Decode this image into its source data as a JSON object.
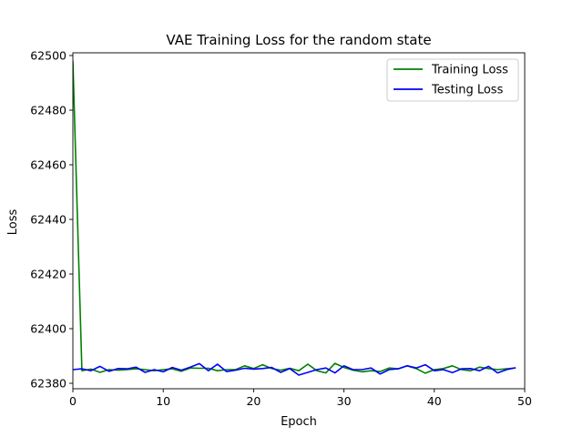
{
  "chart_data": {
    "type": "line",
    "title": "VAE Training Loss for the random state",
    "xlabel": "Epoch",
    "ylabel": "Loss",
    "xlim": [
      0,
      50
    ],
    "ylim": [
      62378,
      62501
    ],
    "xticks": [
      0,
      10,
      20,
      30,
      40,
      50
    ],
    "yticks": [
      62380,
      62400,
      62420,
      62440,
      62460,
      62480,
      62500
    ],
    "grid": false,
    "legend_position": "top-right",
    "x": [
      0,
      1,
      2,
      3,
      4,
      5,
      6,
      7,
      8,
      9,
      10,
      11,
      12,
      13,
      14,
      15,
      16,
      17,
      18,
      19,
      20,
      21,
      22,
      23,
      24,
      25,
      26,
      27,
      28,
      29,
      30,
      31,
      32,
      33,
      34,
      35,
      36,
      37,
      38,
      39,
      40,
      41,
      42,
      43,
      44,
      45,
      46,
      47,
      48,
      49
    ],
    "series": [
      {
        "name": "Training Loss",
        "color": "#008000",
        "values": [
          62498,
          62384.6,
          62385.2,
          62384.0,
          62385.0,
          62384.8,
          62385.0,
          62385.3,
          62385.0,
          62384.6,
          62385.0,
          62385.3,
          62384.4,
          62385.6,
          62385.5,
          62385.5,
          62384.6,
          62385.0,
          62385.0,
          62386.4,
          62385.4,
          62386.8,
          62385.4,
          62384.8,
          62385.5,
          62384.6,
          62387.0,
          62384.6,
          62383.8,
          62387.3,
          62385.8,
          62384.8,
          62384.2,
          62384.6,
          62384.3,
          62385.6,
          62385.3,
          62386.4,
          62385.4,
          62383.7,
          62385.0,
          62385.4,
          62386.4,
          62385.0,
          62384.6,
          62385.9,
          62385.4,
          62385.0,
          62385.3,
          62385.6
        ]
      },
      {
        "name": "Testing Loss",
        "color": "#0000ff",
        "values": [
          62385.0,
          62385.3,
          62384.6,
          62386.2,
          62384.4,
          62385.4,
          62385.3,
          62385.9,
          62384.0,
          62385.0,
          62384.2,
          62385.8,
          62384.8,
          62385.9,
          62387.2,
          62384.6,
          62387.0,
          62384.3,
          62384.8,
          62385.5,
          62385.2,
          62385.4,
          62385.8,
          62384.0,
          62385.4,
          62383.0,
          62384.0,
          62385.0,
          62385.6,
          62383.8,
          62386.4,
          62385.0,
          62385.0,
          62385.6,
          62383.4,
          62385.0,
          62385.3,
          62386.4,
          62385.6,
          62386.8,
          62384.6,
          62385.0,
          62383.9,
          62385.3,
          62385.4,
          62384.6,
          62386.2,
          62383.8,
          62385.0,
          62385.7
        ]
      }
    ]
  }
}
